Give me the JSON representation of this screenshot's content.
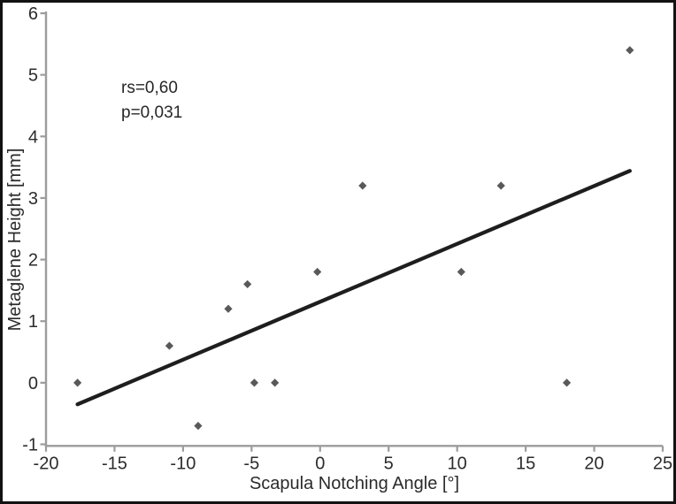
{
  "figure": {
    "background": "#ffffff",
    "frame_color": "#121212"
  },
  "chart_data": {
    "type": "scatter",
    "title": "",
    "xlabel": "Scapula Notching Angle [°]",
    "ylabel": "Metaglene Height [mm]",
    "xlim": [
      -20,
      25
    ],
    "ylim": [
      -1,
      6
    ],
    "xticks": [
      -20,
      -15,
      -10,
      -5,
      0,
      5,
      10,
      15,
      20,
      25
    ],
    "yticks": [
      -1,
      0,
      1,
      2,
      3,
      4,
      5,
      6
    ],
    "grid": false,
    "legend": false,
    "points": [
      [
        -17.7,
        0
      ],
      [
        -11,
        0.6
      ],
      [
        -8.9,
        -0.7
      ],
      [
        -6.7,
        1.2
      ],
      [
        -5.3,
        1.6
      ],
      [
        -4.8,
        0
      ],
      [
        -3.3,
        0
      ],
      [
        -0.2,
        1.8
      ],
      [
        3.1,
        3.2
      ],
      [
        10.3,
        1.8
      ],
      [
        13.2,
        3.2
      ],
      [
        18,
        0
      ],
      [
        22.6,
        5.4
      ]
    ],
    "trendline": {
      "x1": -17.7,
      "y1": -0.35,
      "x2": 22.6,
      "y2": 3.44
    },
    "annotation": {
      "line1": "rs=0,60",
      "line2": "p=0,031"
    },
    "colors": {
      "marker": "#595959",
      "trend": "#1e1e1e",
      "axis": "#9c9c9c",
      "text": "#2b2b2b"
    }
  }
}
